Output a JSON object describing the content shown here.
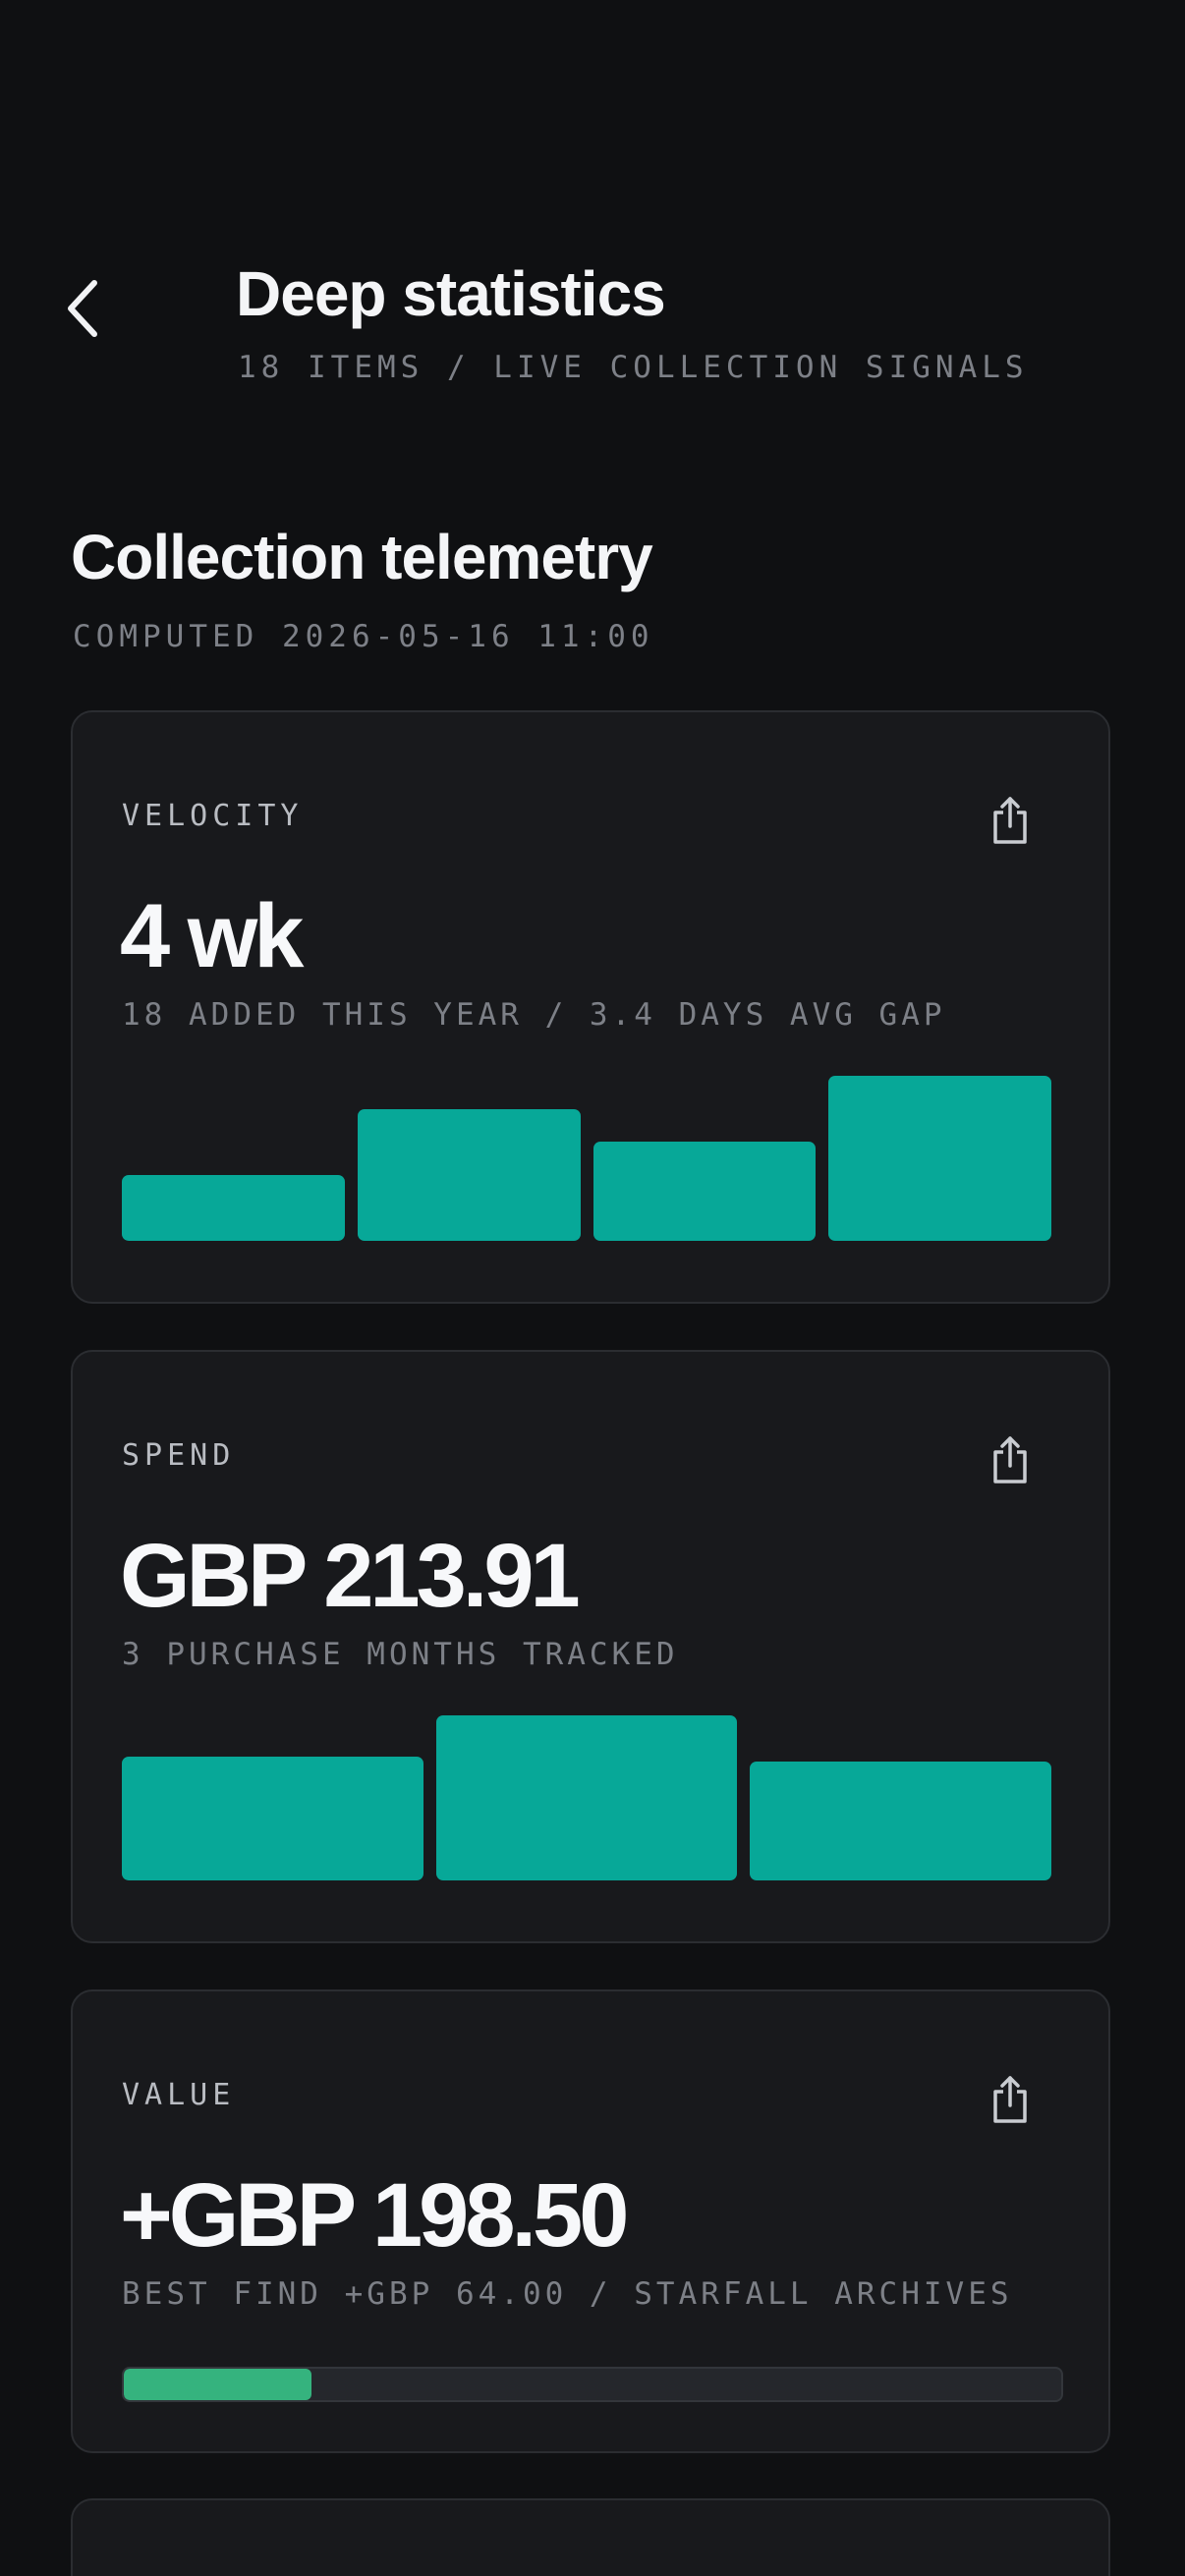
{
  "header": {
    "title": "Deep statistics",
    "subtitle": "18 ITEMS / LIVE COLLECTION SIGNALS",
    "back_icon": "chevron-left-icon"
  },
  "section": {
    "title": "Collection telemetry",
    "subtitle": "COMPUTED 2026-05-16 11:00"
  },
  "cards": {
    "velocity": {
      "label": "VELOCITY",
      "value": "4 wk",
      "detail": "18 ADDED THIS YEAR / 3.4 DAYS AVG GAP",
      "share_icon": "share-icon"
    },
    "spend": {
      "label": "SPEND",
      "value": "GBP 213.91",
      "detail": "3 PURCHASE MONTHS TRACKED",
      "share_icon": "share-icon"
    },
    "value": {
      "label": "VALUE",
      "value": "+GBP 198.50",
      "detail": "BEST FIND +GBP 64.00 / STARFALL ARCHIVES",
      "share_icon": "share-icon"
    }
  },
  "chart_data": [
    {
      "type": "bar",
      "series": [
        {
          "values": [
            2,
            4,
            3,
            5
          ]
        }
      ],
      "ylim": [
        0,
        5
      ]
    },
    {
      "type": "bar",
      "series": [
        {
          "values": [
            75,
            100,
            72
          ]
        }
      ],
      "ylim": [
        0,
        100
      ]
    }
  ],
  "value_progress": {
    "fraction": 0.2
  },
  "colors": {
    "background": "#0f1012",
    "card": "#18191c",
    "bar": "#07a898",
    "progress": "#35b37e",
    "muted_text": "#7d8087"
  }
}
